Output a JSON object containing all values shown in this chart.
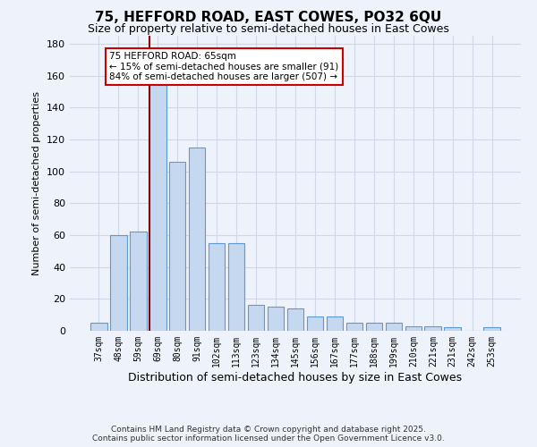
{
  "title1": "75, HEFFORD ROAD, EAST COWES, PO32 6QU",
  "title2": "Size of property relative to semi-detached houses in East Cowes",
  "xlabel": "Distribution of semi-detached houses by size in East Cowes",
  "ylabel": "Number of semi-detached properties",
  "categories": [
    "37sqm",
    "48sqm",
    "59sqm",
    "69sqm",
    "80sqm",
    "91sqm",
    "102sqm",
    "113sqm",
    "123sqm",
    "134sqm",
    "145sqm",
    "156sqm",
    "167sqm",
    "177sqm",
    "188sqm",
    "199sqm",
    "210sqm",
    "221sqm",
    "231sqm",
    "242sqm",
    "253sqm"
  ],
  "values": [
    5,
    60,
    62,
    160,
    106,
    115,
    55,
    55,
    16,
    15,
    14,
    9,
    9,
    5,
    5,
    5,
    3,
    3,
    2,
    0,
    2
  ],
  "bar_color": "#c5d8f0",
  "bar_edge_color": "#5b9bd5",
  "grid_color": "#d0d8e8",
  "background_color": "#eef2fa",
  "vline_color": "#8b0000",
  "annotation_text": "75 HEFFORD ROAD: 65sqm\n← 15% of semi-detached houses are smaller (91)\n84% of semi-detached houses are larger (507) →",
  "annotation_box_color": "#ffffff",
  "annotation_box_edge": "#cc0000",
  "ylim": [
    0,
    185
  ],
  "yticks": [
    0,
    20,
    40,
    60,
    80,
    100,
    120,
    140,
    160,
    180
  ],
  "footer1": "Contains HM Land Registry data © Crown copyright and database right 2025.",
  "footer2": "Contains public sector information licensed under the Open Government Licence v3.0."
}
